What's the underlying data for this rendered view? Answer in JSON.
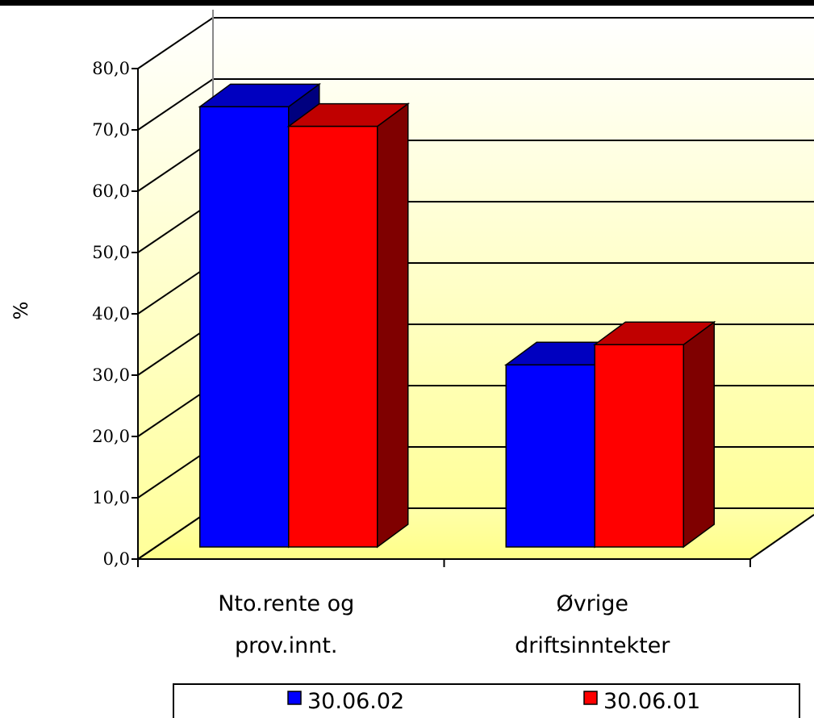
{
  "chart_data": {
    "type": "bar",
    "style": "3d-clustered-column",
    "categories": [
      "Nto.rente og prov.innt.",
      "Øvrige driftsinntekter"
    ],
    "category_lines": [
      [
        "Nto.rente og",
        "prov.innt."
      ],
      [
        "Øvrige",
        "driftsinntekter"
      ]
    ],
    "series": [
      {
        "name": "30.06.02",
        "values": [
          71.8,
          29.7
        ],
        "color": "#0000ff",
        "side_color": "#00007f",
        "top_color": "#0000c0"
      },
      {
        "name": "30.06.01",
        "values": [
          68.6,
          33.0
        ],
        "color": "#ff0000",
        "side_color": "#7f0000",
        "top_color": "#c00000"
      }
    ],
    "ylabel": "%",
    "ylim": [
      0,
      80
    ],
    "yticks": [
      "0,0",
      "10,0",
      "20,0",
      "30,0",
      "40,0",
      "50,0",
      "60,0",
      "70,0",
      "80,0"
    ],
    "grid": true,
    "legend_position": "bottom"
  }
}
